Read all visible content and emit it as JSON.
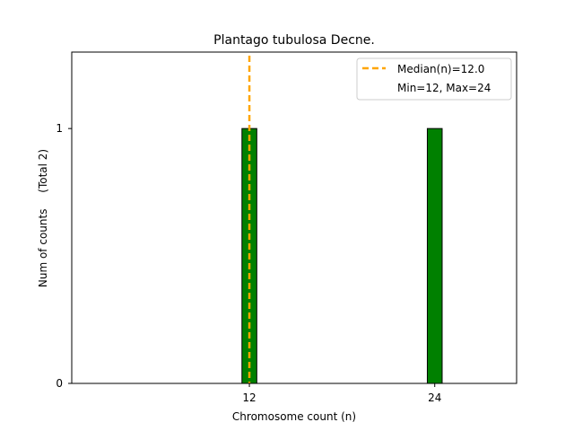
{
  "chart_data": {
    "type": "bar",
    "title": "Plantago tubulosa Decne.",
    "xlabel": "Chromosome count (n)",
    "ylabel": "Num of counts",
    "ylabel_total": "(Total 2)",
    "bars": [
      {
        "x": 12,
        "value": 1
      },
      {
        "x": 24,
        "value": 1
      }
    ],
    "xticks": [
      12,
      24
    ],
    "yticks": [
      0,
      1
    ],
    "xlim": [
      0.5,
      29.3
    ],
    "ylim": [
      0,
      1.3
    ],
    "bar_color": "#008000",
    "bar_edge_color": "#000000",
    "median": 12.0,
    "median_color": "#FFA500",
    "legend": {
      "placement": "top-right",
      "entries": [
        "Median(n)=12.0",
        "Min=12, Max=24"
      ]
    },
    "grid": false
  }
}
